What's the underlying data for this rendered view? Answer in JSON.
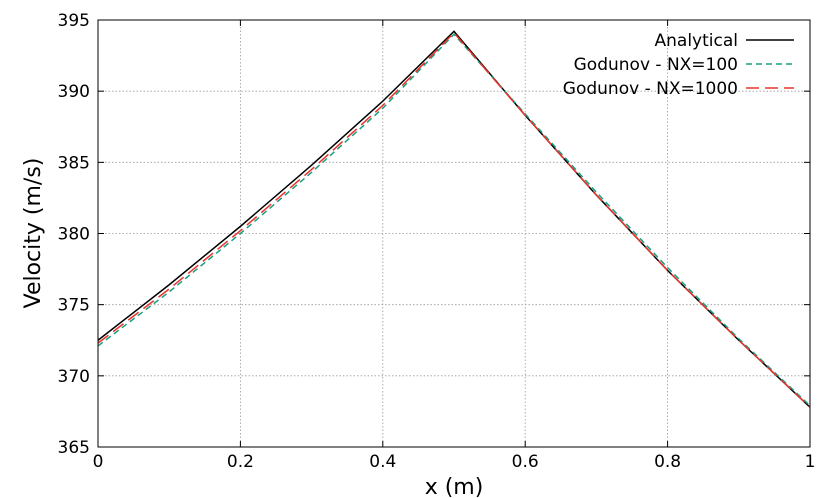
{
  "chart_data": {
    "type": "line",
    "title": "",
    "xlabel": "x (m)",
    "ylabel": "Velocity (m/s)",
    "xlim": [
      0,
      1
    ],
    "ylim": [
      365,
      395
    ],
    "xticks": [
      0,
      0.2,
      0.4,
      0.6,
      0.8,
      1
    ],
    "xtick_labels": [
      "0",
      "0.2",
      "0.4",
      "0.6",
      "0.8",
      "1"
    ],
    "yticks": [
      365,
      370,
      375,
      380,
      385,
      390,
      395
    ],
    "ytick_labels": [
      "365",
      "370",
      "375",
      "380",
      "385",
      "390",
      "395"
    ],
    "grid": true,
    "legend_position": "top-right",
    "series": [
      {
        "name": "Analytical",
        "color": "#000000",
        "style": "solid",
        "x": [
          0,
          0.1,
          0.2,
          0.3,
          0.4,
          0.5,
          0.6,
          0.7,
          0.8,
          0.9,
          1.0
        ],
        "y": [
          372.5,
          376.4,
          380.5,
          384.8,
          389.3,
          394.2,
          388.3,
          382.7,
          377.4,
          372.5,
          367.8
        ]
      },
      {
        "name": "Godunov - NX=100",
        "color": "#1a9e82",
        "style": "dashed",
        "x": [
          0,
          0.1,
          0.2,
          0.3,
          0.4,
          0.5,
          0.6,
          0.7,
          0.8,
          0.9,
          1.0
        ],
        "y": [
          372.1,
          375.9,
          380.0,
          384.3,
          388.8,
          394.0,
          388.4,
          382.9,
          377.6,
          372.6,
          367.9
        ]
      },
      {
        "name": "Godunov - NX=1000",
        "color": "#e8332a",
        "style": "longdash",
        "x": [
          0,
          0.1,
          0.2,
          0.3,
          0.4,
          0.5,
          0.6,
          0.7,
          0.8,
          0.9,
          1.0
        ],
        "y": [
          372.3,
          376.1,
          380.2,
          384.5,
          389.0,
          394.1,
          388.3,
          382.7,
          377.4,
          372.5,
          367.8
        ]
      }
    ]
  }
}
